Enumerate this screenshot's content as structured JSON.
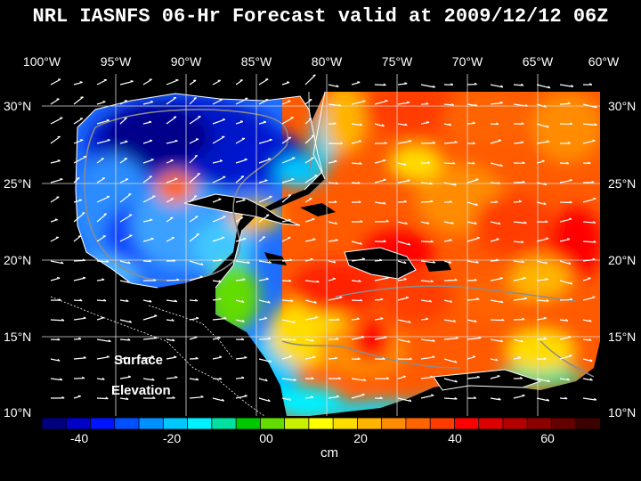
{
  "title": "NRL IASNFS  06-Hr Forecast valid at 2009/12/12 06Z",
  "lon_labels": [
    "100°W",
    "95°W",
    "90°W",
    "85°W",
    "80°W",
    "75°W",
    "70°W",
    "65°W",
    "60°W"
  ],
  "lat_labels": [
    "30°N",
    "25°N",
    "20°N",
    "15°N",
    "10°N"
  ],
  "map_label_1": "Surface",
  "map_label_2": "Elevation",
  "colorbar": {
    "unit": "cm",
    "tick_labels": [
      "-40",
      "-20",
      "00",
      "20",
      "40",
      "60"
    ],
    "colors": [
      "#00007f",
      "#0000c8",
      "#0014ff",
      "#0050ff",
      "#0090ff",
      "#00c8ff",
      "#00f0ff",
      "#00e0a0",
      "#00c800",
      "#64dc00",
      "#c8f000",
      "#ffff00",
      "#ffdc00",
      "#ffb400",
      "#ff8c00",
      "#ff6400",
      "#ff3c00",
      "#ff0000",
      "#dc0000",
      "#b40000",
      "#8c0000",
      "#640000",
      "#3c0000"
    ]
  }
}
